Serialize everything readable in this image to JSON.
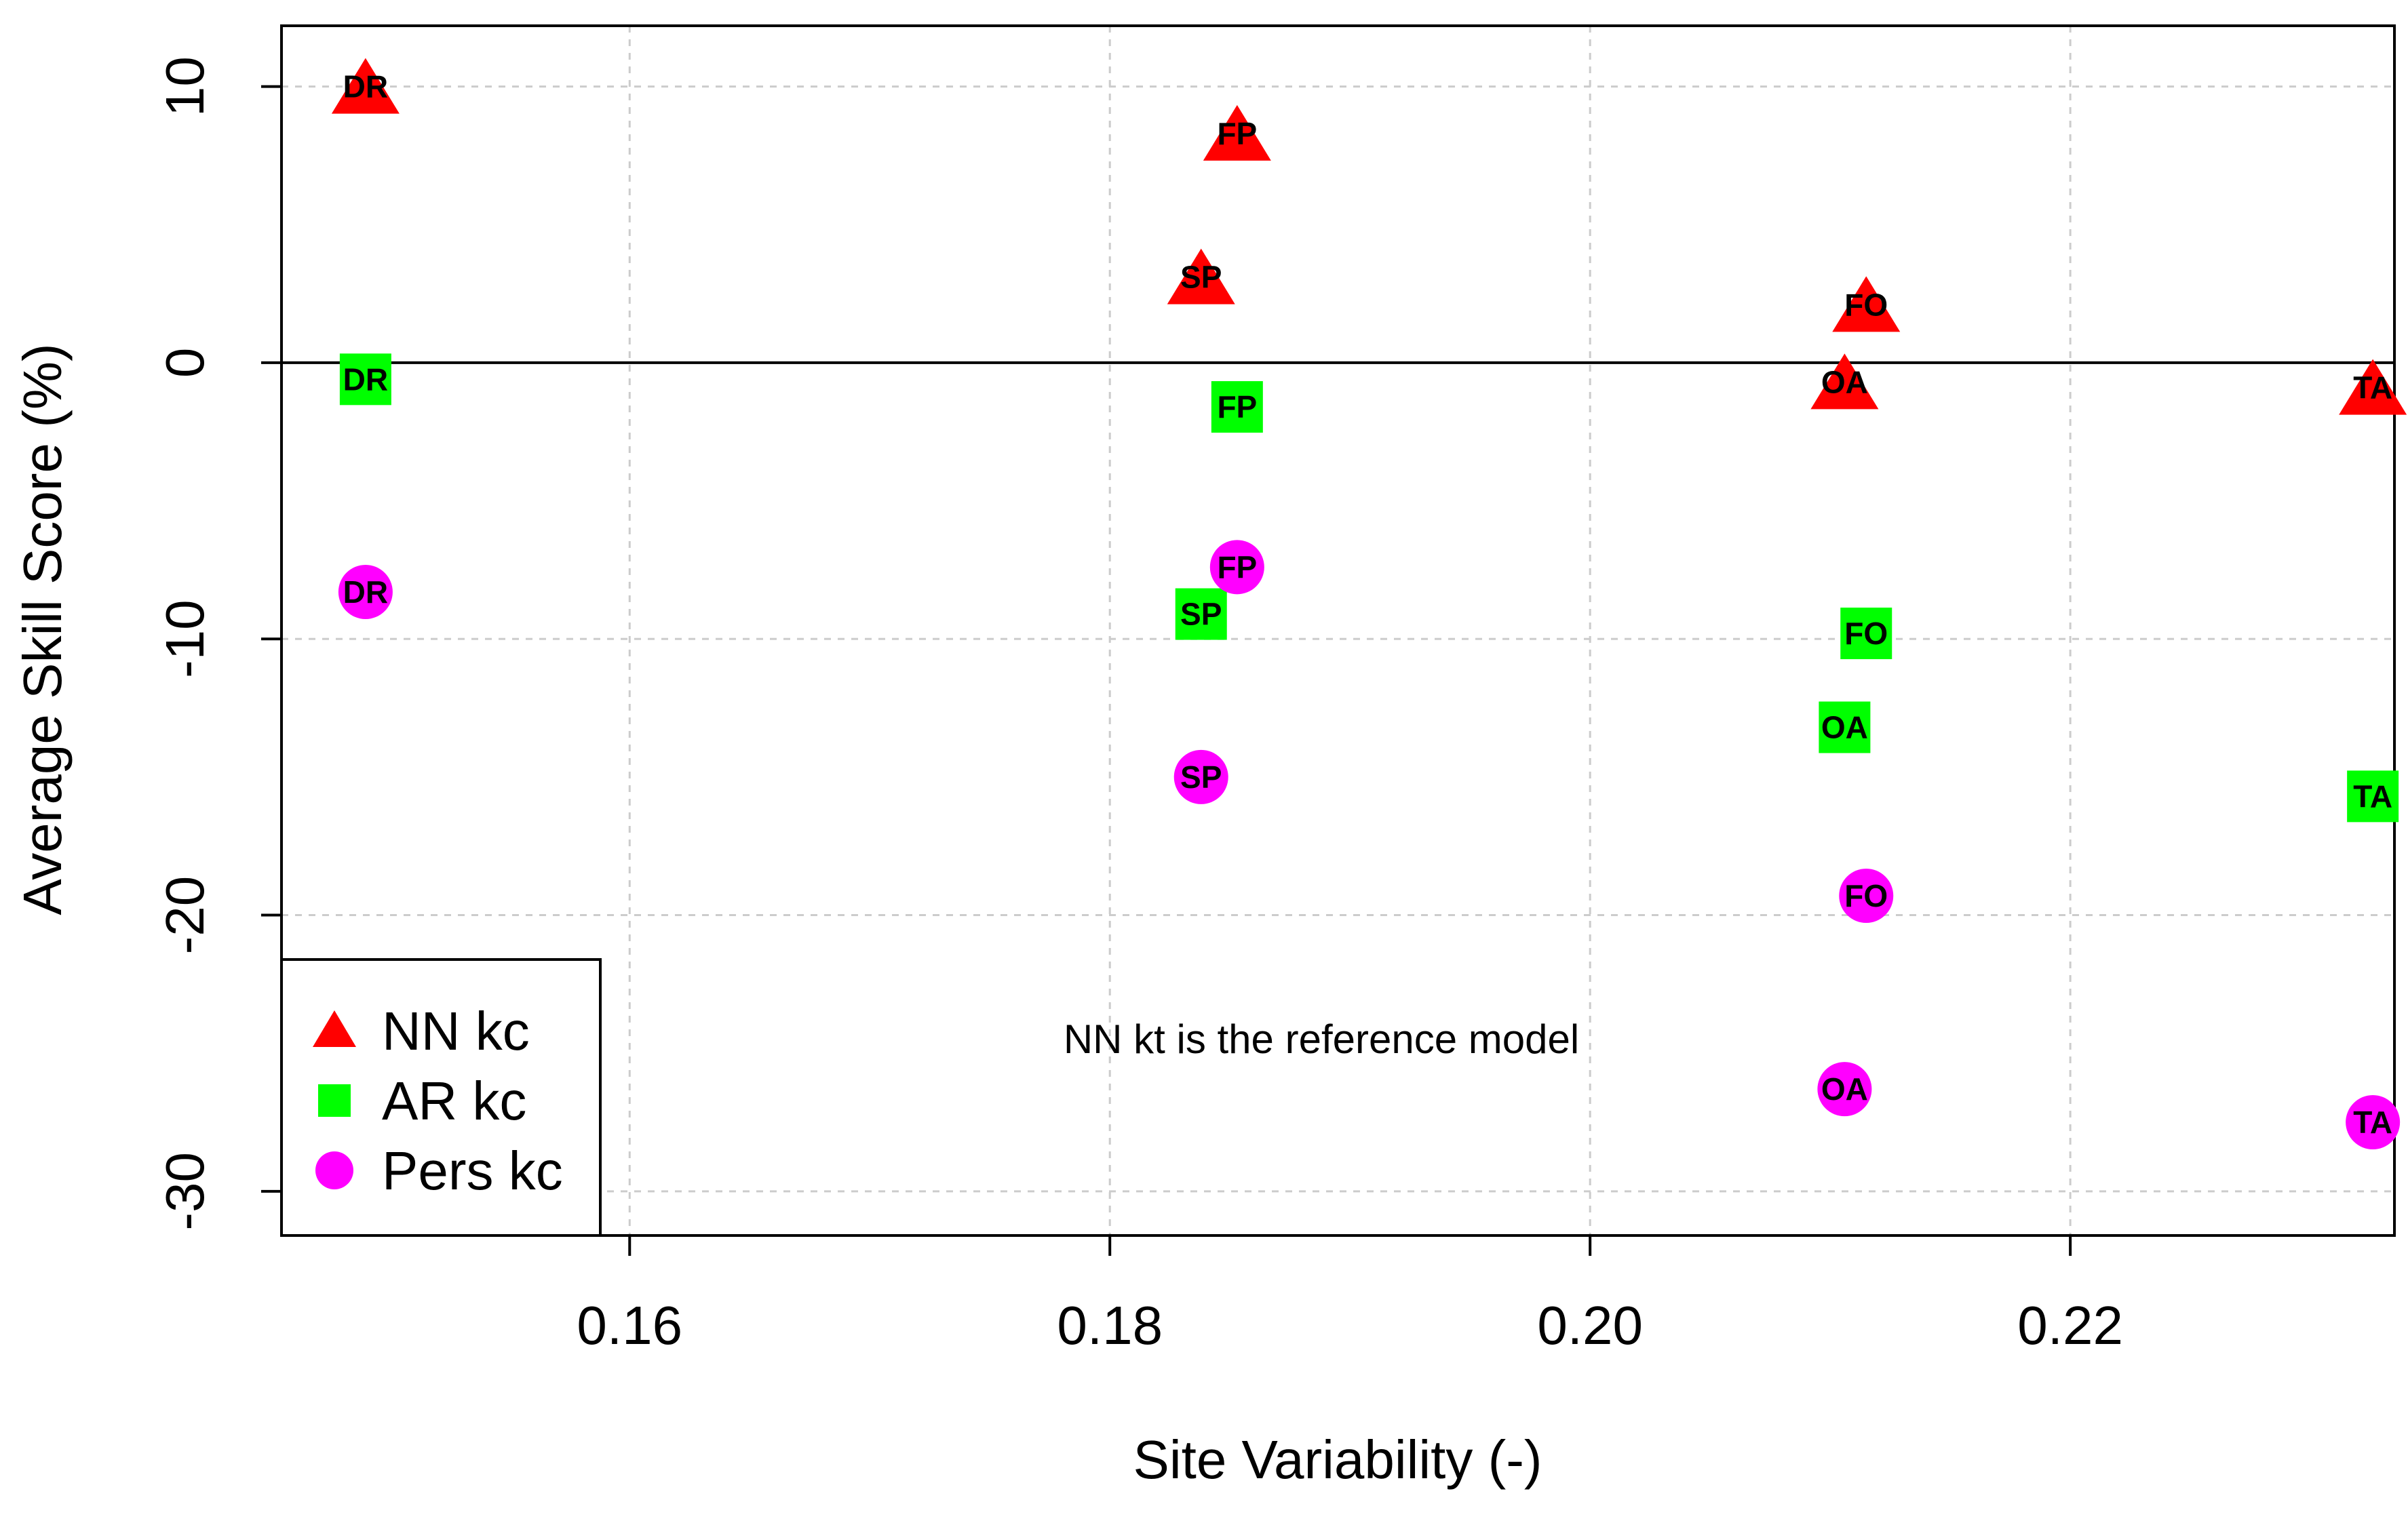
{
  "chart_data": {
    "type": "scatter",
    "title": "",
    "xlabel": "Site Variability (-)",
    "ylabel": "Average Skill Score (%)",
    "xlim": [
      0.1455,
      0.2335
    ],
    "ylim": [
      -31.6,
      12.2
    ],
    "xticks": [
      0.16,
      0.18,
      0.2,
      0.22
    ],
    "xtick_labels": [
      "0.16",
      "0.18",
      "0.20",
      "0.22"
    ],
    "yticks": [
      10,
      0,
      -10,
      -20,
      -30
    ],
    "ytick_labels": [
      "10",
      "0",
      "-10",
      "-20",
      "-30"
    ],
    "grid": true,
    "reference_line_y": 0,
    "annotation": "NN kt is the reference model",
    "legend_position": "bottom-left",
    "series": [
      {
        "name": "NN kc",
        "marker": "triangle",
        "color": "#ff0000",
        "points": [
          {
            "label": "DR",
            "x": 0.149,
            "y": 10.0
          },
          {
            "label": "FP",
            "x": 0.1853,
            "y": 8.3
          },
          {
            "label": "SP",
            "x": 0.1838,
            "y": 3.1
          },
          {
            "label": "FO",
            "x": 0.2115,
            "y": 2.1
          },
          {
            "label": "OA",
            "x": 0.2106,
            "y": -0.7
          },
          {
            "label": "TA",
            "x": 0.2326,
            "y": -0.9
          }
        ]
      },
      {
        "name": "AR kc",
        "marker": "square",
        "color": "#00ff00",
        "points": [
          {
            "label": "DR",
            "x": 0.149,
            "y": -0.6
          },
          {
            "label": "FP",
            "x": 0.1853,
            "y": -1.6
          },
          {
            "label": "SP",
            "x": 0.1838,
            "y": -9.1
          },
          {
            "label": "FO",
            "x": 0.2115,
            "y": -9.8
          },
          {
            "label": "OA",
            "x": 0.2106,
            "y": -13.2
          },
          {
            "label": "TA",
            "x": 0.2326,
            "y": -15.7
          }
        ]
      },
      {
        "name": "Pers kc",
        "marker": "circle",
        "color": "#ff00ff",
        "points": [
          {
            "label": "DR",
            "x": 0.149,
            "y": -8.3
          },
          {
            "label": "FP",
            "x": 0.1853,
            "y": -7.4
          },
          {
            "label": "SP",
            "x": 0.1838,
            "y": -15.0
          },
          {
            "label": "FO",
            "x": 0.2115,
            "y": -19.3
          },
          {
            "label": "OA",
            "x": 0.2106,
            "y": -26.3
          },
          {
            "label": "TA",
            "x": 0.2326,
            "y": -27.5
          }
        ]
      }
    ]
  }
}
